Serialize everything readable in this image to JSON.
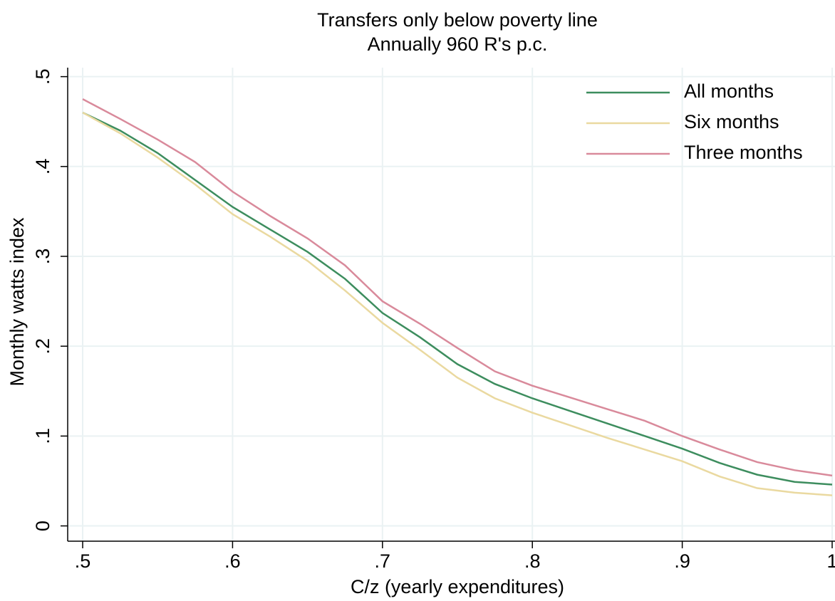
{
  "chart_data": {
    "type": "line",
    "title": "Transfers only below poverty line",
    "subtitle": "Annually 960 R's p.c.",
    "x_label": "C/z (yearly expenditures)",
    "y_label": "Monthly watts index",
    "x": [
      0.5,
      0.525,
      0.55,
      0.575,
      0.6,
      0.625,
      0.65,
      0.675,
      0.7,
      0.725,
      0.75,
      0.775,
      0.8,
      0.825,
      0.85,
      0.875,
      0.9,
      0.925,
      0.95,
      0.975,
      1.0
    ],
    "series": [
      {
        "name": "All months",
        "color": "#3d8d5e",
        "values": [
          0.46,
          0.44,
          0.415,
          0.385,
          0.355,
          0.33,
          0.305,
          0.275,
          0.237,
          0.21,
          0.18,
          0.158,
          0.142,
          0.128,
          0.114,
          0.1,
          0.086,
          0.07,
          0.057,
          0.049,
          0.046
        ]
      },
      {
        "name": "Six months",
        "color": "#ead9a0",
        "values": [
          0.46,
          0.437,
          0.41,
          0.38,
          0.347,
          0.322,
          0.295,
          0.262,
          0.226,
          0.196,
          0.165,
          0.142,
          0.126,
          0.112,
          0.098,
          0.085,
          0.072,
          0.055,
          0.042,
          0.037,
          0.034
        ]
      },
      {
        "name": "Three months",
        "color": "#d98a9b",
        "values": [
          0.475,
          0.453,
          0.43,
          0.405,
          0.372,
          0.345,
          0.32,
          0.29,
          0.25,
          0.225,
          0.198,
          0.172,
          0.156,
          0.143,
          0.13,
          0.117,
          0.1,
          0.085,
          0.071,
          0.062,
          0.056
        ]
      }
    ],
    "xlim": [
      0.49,
      1.0
    ],
    "ylim": [
      -0.017,
      0.51
    ],
    "xticks": [
      {
        "value": 0.5,
        "label": ".5"
      },
      {
        "value": 0.6,
        "label": ".6"
      },
      {
        "value": 0.7,
        "label": ".7"
      },
      {
        "value": 0.8,
        "label": ".8"
      },
      {
        "value": 0.9,
        "label": ".9"
      },
      1
    ],
    "yticks": [
      0,
      {
        "value": 0.1,
        "label": ".1"
      },
      {
        "value": 0.2,
        "label": ".2"
      },
      {
        "value": 0.3,
        "label": ".3"
      },
      {
        "value": 0.4,
        "label": ".4"
      },
      {
        "value": 0.5,
        "label": ".5"
      }
    ],
    "grid": true,
    "legend": "top-right"
  }
}
